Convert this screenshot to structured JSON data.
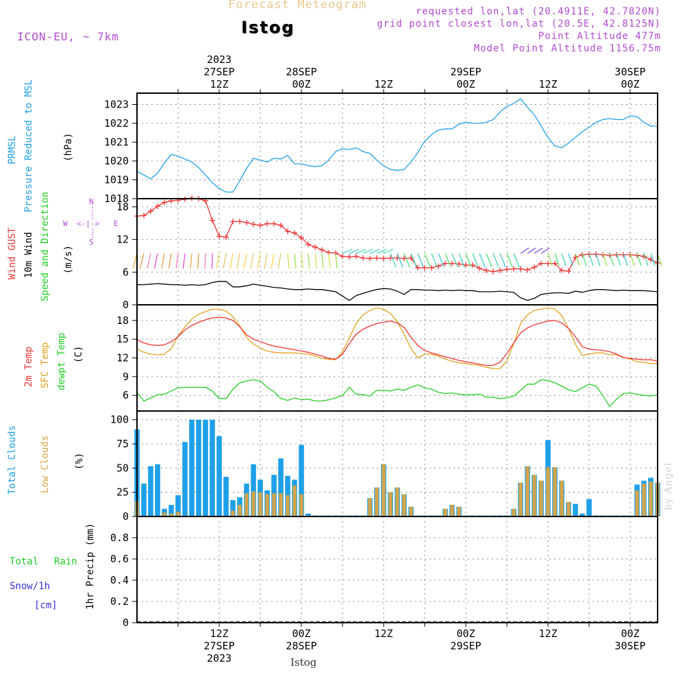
{
  "header": {
    "product_title": "Forecast Meteogram",
    "station": "Istog",
    "model_name": "ICON-EU, ~ 7km",
    "requested_point": "requested lon,lat (20.4911E, 42.7820N)",
    "grid_point": "grid point closest lon,lat (20.5E, 42.8125N)",
    "point_altitude": "Point Altitude 477m",
    "model_altitude": "Model Point Altitude 1156.75m",
    "watermark": "by Angel",
    "footer_station": "Istog"
  },
  "colors": {
    "pressure": "#1ea0e8",
    "gust": "#ee3333",
    "wind": "#000000",
    "temp2m": "#ee3333",
    "sfc_temp": "#e0a020",
    "dewpt": "#22cc22",
    "total_cloud": "#1ea0e8",
    "low_cloud": "#d4a54a",
    "title": "#e8c890",
    "info": "#b04ad0",
    "rain": "#22cc22",
    "snow": "#3333dd"
  },
  "time_axis": {
    "top_labels": [
      {
        "hour": 12,
        "lines": [
          "2023",
          "27SEP",
          "12Z"
        ]
      },
      {
        "hour": 24,
        "lines": [
          "28SEP",
          "00Z"
        ]
      },
      {
        "hour": 36,
        "lines": [
          "12Z"
        ]
      },
      {
        "hour": 48,
        "lines": [
          "29SEP",
          "00Z"
        ]
      },
      {
        "hour": 60,
        "lines": [
          "12Z"
        ]
      },
      {
        "hour": 72,
        "lines": [
          "30SEP",
          "00Z"
        ]
      }
    ],
    "bottom_labels": [
      {
        "hour": 12,
        "lines": [
          "12Z",
          "27SEP",
          "2023"
        ]
      },
      {
        "hour": 24,
        "lines": [
          "00Z",
          "28SEP"
        ]
      },
      {
        "hour": 36,
        "lines": [
          "12Z"
        ]
      },
      {
        "hour": 48,
        "lines": [
          "00Z",
          "29SEP"
        ]
      },
      {
        "hour": 60,
        "lines": [
          "12Z"
        ]
      },
      {
        "hour": 72,
        "lines": [
          "00Z",
          "30SEP"
        ]
      }
    ]
  },
  "panels": {
    "pressure": {
      "labels": [
        "PRMSL",
        "Pressure Reduced to MSL"
      ],
      "unit": "(hPa)"
    },
    "wind": {
      "labels": [
        "Wind GUST",
        "10m Wind",
        "Speed and Direction"
      ],
      "unit": "(m/s)",
      "compass": {
        "n": "N",
        "s": "S",
        "w": "W",
        "e": "E",
        "dirs": "<-|->"
      }
    },
    "temp": {
      "labels": [
        "2m Temp",
        "SFC Temp",
        "dewpt Temp"
      ],
      "unit": "(C)"
    },
    "cloud": {
      "labels": [
        "Total Clouds",
        "Low Clouds"
      ],
      "unit": "(%)"
    },
    "precip": {
      "labels": [
        "Total",
        "Rain",
        "Snow/1h",
        "[cm]"
      ],
      "unit": "1hr Precip (mm)"
    }
  },
  "chart_data": [
    {
      "type": "line",
      "title": "PRMSL Pressure Reduced to MSL",
      "ylabel": "(hPa)",
      "ylim": [
        1018,
        1023.6
      ],
      "yticks": [
        1018,
        1019,
        1020,
        1021,
        1022,
        1023
      ],
      "x": [
        0,
        1,
        2,
        3,
        4,
        5,
        6,
        7,
        8,
        9,
        10,
        11,
        12,
        13,
        14,
        15,
        16,
        17,
        18,
        19,
        20,
        21,
        22,
        23,
        24,
        25,
        26,
        27,
        28,
        29,
        30,
        31,
        32,
        33,
        34,
        35,
        36,
        37,
        38,
        39,
        40,
        41,
        42,
        43,
        44,
        45,
        46,
        47,
        48,
        49,
        50,
        51,
        52,
        53,
        54,
        55,
        56,
        57,
        58,
        59,
        60,
        61,
        62,
        63,
        64,
        65,
        66,
        67,
        68,
        69,
        70,
        71,
        72,
        73,
        74,
        75,
        76
      ],
      "series": [
        {
          "name": "PRMSL",
          "values": [
            1019.45,
            1019.25,
            1019.05,
            1019.35,
            1019.9,
            1020.35,
            1020.25,
            1020.1,
            1019.95,
            1019.65,
            1019.25,
            1018.85,
            1018.55,
            1018.35,
            1018.35,
            1018.95,
            1019.6,
            1020.15,
            1020.05,
            1019.95,
            1020.15,
            1020.1,
            1020.3,
            1019.85,
            1019.85,
            1019.75,
            1019.7,
            1019.75,
            1020.05,
            1020.5,
            1020.65,
            1020.6,
            1020.7,
            1020.5,
            1020.4,
            1020.05,
            1019.75,
            1019.55,
            1019.5,
            1019.55,
            1019.95,
            1020.45,
            1021.05,
            1021.4,
            1021.65,
            1021.7,
            1021.7,
            1021.95,
            1022.05,
            1022.0,
            1022.0,
            1022.05,
            1022.2,
            1022.6,
            1022.9,
            1023.05,
            1023.3,
            1022.85,
            1022.45,
            1021.85,
            1021.25,
            1020.8,
            1020.7,
            1020.95,
            1021.25,
            1021.55,
            1021.8,
            1022.05,
            1022.2,
            1022.25,
            1022.2,
            1022.2,
            1022.4,
            1022.35,
            1022.05,
            1021.85,
            1021.85
          ]
        }
      ]
    },
    {
      "type": "line",
      "title": "Wind GUST / 10m Wind Speed and Direction",
      "ylabel": "(m/s)",
      "ylim": [
        0,
        19.5
      ],
      "yticks": [
        0,
        6,
        12,
        18
      ],
      "x": [
        0,
        1,
        2,
        3,
        4,
        5,
        6,
        7,
        8,
        9,
        10,
        11,
        12,
        13,
        14,
        15,
        16,
        17,
        18,
        19,
        20,
        21,
        22,
        23,
        24,
        25,
        26,
        27,
        28,
        29,
        30,
        31,
        32,
        33,
        34,
        35,
        36,
        37,
        38,
        39,
        40,
        41,
        42,
        43,
        44,
        45,
        46,
        47,
        48,
        49,
        50,
        51,
        52,
        53,
        54,
        55,
        56,
        57,
        58,
        59,
        60,
        61,
        62,
        63,
        64,
        65,
        66,
        67,
        68,
        69,
        70,
        71,
        72,
        73,
        74,
        75,
        76
      ],
      "series": [
        {
          "name": "Wind GUST",
          "values": [
            16.3,
            16.4,
            17.2,
            18.1,
            18.8,
            19.1,
            19.2,
            19.4,
            19.6,
            19.5,
            19.1,
            15.5,
            12.6,
            12.4,
            15.3,
            15.3,
            15.1,
            14.8,
            14.6,
            14.9,
            14.9,
            14.6,
            13.5,
            13.2,
            12.3,
            11.1,
            10.6,
            10.1,
            9.6,
            9.5,
            8.9,
            8.8,
            8.9,
            8.6,
            8.5,
            8.6,
            8.5,
            8.6,
            8.6,
            8.5,
            8.6,
            6.8,
            6.8,
            6.8,
            7.1,
            7.6,
            7.6,
            7.5,
            7.3,
            7.3,
            6.7,
            6.3,
            6.1,
            6.3,
            6.5,
            6.6,
            6.6,
            6.4,
            6.9,
            7.6,
            7.6,
            7.6,
            6.3,
            6.2,
            8.7,
            9.2,
            9.3,
            9.3,
            9.2,
            9.1,
            9.2,
            9.2,
            9.2,
            9.1,
            8.9,
            8.3,
            7.7
          ]
        },
        {
          "name": "10m Wind",
          "values": [
            3.7,
            3.7,
            3.8,
            3.9,
            3.8,
            3.7,
            3.7,
            3.6,
            3.7,
            3.6,
            3.7,
            4.1,
            4.3,
            4.3,
            3.3,
            3.3,
            3.5,
            3.8,
            3.6,
            3.4,
            3.2,
            3.1,
            2.9,
            2.8,
            2.8,
            2.9,
            2.8,
            2.8,
            2.6,
            2.4,
            1.6,
            0.8,
            1.7,
            2.1,
            2.5,
            2.8,
            3.0,
            2.9,
            2.5,
            1.9,
            2.8,
            2.8,
            2.7,
            2.7,
            2.6,
            2.7,
            2.6,
            2.7,
            2.6,
            2.6,
            2.4,
            2.4,
            2.4,
            2.5,
            2.4,
            2.3,
            1.3,
            0.8,
            1.2,
            1.9,
            2.1,
            2.2,
            2.2,
            2.1,
            2.5,
            2.3,
            2.6,
            2.8,
            2.8,
            2.7,
            2.6,
            2.7,
            2.6,
            2.6,
            2.6,
            2.5,
            2.4
          ]
        }
      ]
    },
    {
      "type": "line",
      "title": "2m Temp / SFC Temp / dewpt Temp",
      "ylabel": "(C)",
      "ylim": [
        3.5,
        20.5
      ],
      "yticks": [
        6,
        9,
        12,
        15,
        18
      ],
      "x": [
        0,
        1,
        2,
        3,
        4,
        5,
        6,
        7,
        8,
        9,
        10,
        11,
        12,
        13,
        14,
        15,
        16,
        17,
        18,
        19,
        20,
        21,
        22,
        23,
        24,
        25,
        26,
        27,
        28,
        29,
        30,
        31,
        32,
        33,
        34,
        35,
        36,
        37,
        38,
        39,
        40,
        41,
        42,
        43,
        44,
        45,
        46,
        47,
        48,
        49,
        50,
        51,
        52,
        53,
        54,
        55,
        56,
        57,
        58,
        59,
        60,
        61,
        62,
        63,
        64,
        65,
        66,
        67,
        68,
        69,
        70,
        71,
        72,
        73,
        74,
        75,
        76
      ],
      "series": [
        {
          "name": "2m Temp",
          "values": [
            14.9,
            14.4,
            14.1,
            14.0,
            14.1,
            14.6,
            15.4,
            16.5,
            17.2,
            17.7,
            18.1,
            18.4,
            18.5,
            18.4,
            18.0,
            17.0,
            15.7,
            15.0,
            14.6,
            14.2,
            13.9,
            13.7,
            13.5,
            13.3,
            13.1,
            12.9,
            12.6,
            12.3,
            11.9,
            11.8,
            12.6,
            14.3,
            15.8,
            16.6,
            17.1,
            17.5,
            17.7,
            17.9,
            17.6,
            16.9,
            15.3,
            14.0,
            13.2,
            12.8,
            12.5,
            12.2,
            11.9,
            11.6,
            11.4,
            11.2,
            11.0,
            10.8,
            10.8,
            11.3,
            12.7,
            14.4,
            16.0,
            16.8,
            17.3,
            17.6,
            17.9,
            18.0,
            17.6,
            16.7,
            15.4,
            13.8,
            13.4,
            13.3,
            13.2,
            13.0,
            12.6,
            12.1,
            11.9,
            11.8,
            11.7,
            11.7,
            11.5
          ]
        },
        {
          "name": "SFC Temp",
          "values": [
            13.4,
            12.9,
            12.6,
            12.5,
            12.6,
            13.5,
            15.5,
            17.0,
            18.2,
            19.0,
            19.4,
            19.8,
            19.8,
            19.5,
            18.6,
            17.1,
            15.3,
            14.2,
            13.6,
            13.1,
            12.9,
            12.8,
            12.8,
            12.8,
            12.7,
            12.6,
            12.3,
            11.9,
            11.8,
            11.7,
            13.0,
            15.2,
            17.5,
            18.9,
            19.6,
            20.0,
            19.8,
            19.1,
            17.8,
            15.8,
            13.5,
            12.0,
            12.6,
            12.6,
            12.3,
            11.8,
            11.5,
            11.2,
            11.1,
            10.9,
            10.8,
            10.5,
            10.3,
            10.3,
            11.5,
            14.3,
            17.5,
            18.9,
            19.6,
            19.8,
            20.0,
            19.8,
            18.8,
            16.7,
            14.2,
            12.4,
            12.6,
            12.8,
            12.8,
            12.5,
            12.5,
            12.1,
            11.8,
            11.4,
            11.3,
            11.1,
            11.1
          ]
        },
        {
          "name": "dewpt Temp",
          "values": [
            6.5,
            5.1,
            5.6,
            6.1,
            6.2,
            6.7,
            7.2,
            7.3,
            7.3,
            7.3,
            7.3,
            6.7,
            5.5,
            5.5,
            7.0,
            8.0,
            8.3,
            8.5,
            8.3,
            7.3,
            6.6,
            5.5,
            5.2,
            5.6,
            5.3,
            5.4,
            5.1,
            5.1,
            5.3,
            5.6,
            6.0,
            7.3,
            6.2,
            6.1,
            5.9,
            6.8,
            6.8,
            6.7,
            7.0,
            6.8,
            7.3,
            7.7,
            7.2,
            7.0,
            6.5,
            6.3,
            6.4,
            6.2,
            6.1,
            6.1,
            6.2,
            5.7,
            5.7,
            5.5,
            5.6,
            5.9,
            6.8,
            7.8,
            7.8,
            8.5,
            8.4,
            8.0,
            7.5,
            6.9,
            6.6,
            7.2,
            7.8,
            7.5,
            6.0,
            4.2,
            5.4,
            6.3,
            6.4,
            6.2,
            6.0,
            5.9,
            6.1
          ]
        }
      ]
    },
    {
      "type": "bar",
      "title": "Total Clouds / Low Clouds",
      "ylabel": "(%)",
      "ylim": [
        0,
        109
      ],
      "yticks": [
        0,
        25,
        50,
        75,
        100
      ],
      "x": [
        0,
        1,
        2,
        3,
        4,
        5,
        6,
        7,
        8,
        9,
        10,
        11,
        12,
        13,
        14,
        15,
        16,
        17,
        18,
        19,
        20,
        21,
        22,
        23,
        24,
        25,
        26,
        27,
        28,
        29,
        30,
        31,
        32,
        33,
        34,
        35,
        36,
        37,
        38,
        39,
        40,
        41,
        42,
        43,
        44,
        45,
        46,
        47,
        48,
        49,
        50,
        51,
        52,
        53,
        54,
        55,
        56,
        57,
        58,
        59,
        60,
        61,
        62,
        63,
        64,
        65,
        66,
        67,
        68,
        69,
        70,
        71,
        72,
        73,
        74,
        75,
        76
      ],
      "series": [
        {
          "name": "Total Clouds",
          "values": [
            90,
            34,
            52,
            54,
            8,
            12,
            22,
            77,
            100,
            100,
            100,
            100,
            83,
            41,
            17,
            20,
            34,
            54,
            38,
            27,
            43,
            60,
            42,
            38,
            74,
            3,
            1,
            1,
            1,
            1,
            1,
            1,
            1,
            1,
            19,
            30,
            54,
            25,
            30,
            23,
            10,
            1,
            1,
            1,
            1,
            8,
            12,
            10,
            1,
            1,
            1,
            1,
            1,
            1,
            1,
            8,
            35,
            52,
            43,
            37,
            79,
            51,
            37,
            15,
            13,
            3,
            18,
            1,
            1,
            1,
            1,
            1,
            1,
            33,
            37,
            40,
            35
          ]
        },
        {
          "name": "Low Clouds",
          "values": [
            16,
            0,
            0,
            0,
            4,
            3,
            5,
            0,
            0,
            0,
            0,
            0,
            0,
            0,
            6,
            12,
            24,
            26,
            25,
            23,
            24,
            24,
            22,
            32,
            23,
            0,
            0,
            0,
            0,
            0,
            0,
            0,
            0,
            0,
            19,
            30,
            54,
            25,
            30,
            23,
            10,
            0,
            0,
            0,
            0,
            8,
            12,
            10,
            0,
            0,
            0,
            0,
            0,
            0,
            0,
            8,
            35,
            52,
            43,
            37,
            51,
            51,
            37,
            15,
            0,
            0,
            0,
            0,
            0,
            0,
            0,
            0,
            0,
            27,
            34,
            36,
            35
          ]
        }
      ]
    },
    {
      "type": "line",
      "title": "1hr Precip",
      "ylabel": "1hr Precip (mm)",
      "ylim": [
        0,
        1.0
      ],
      "yticks": [
        "0",
        "0.2",
        "0.4",
        "0.6",
        "0.8"
      ],
      "x": [
        0,
        76
      ],
      "series": [
        {
          "name": "Total Rain",
          "values": [
            0,
            0
          ]
        },
        {
          "name": "Snow/1h",
          "values": [
            0,
            0
          ]
        }
      ]
    }
  ]
}
